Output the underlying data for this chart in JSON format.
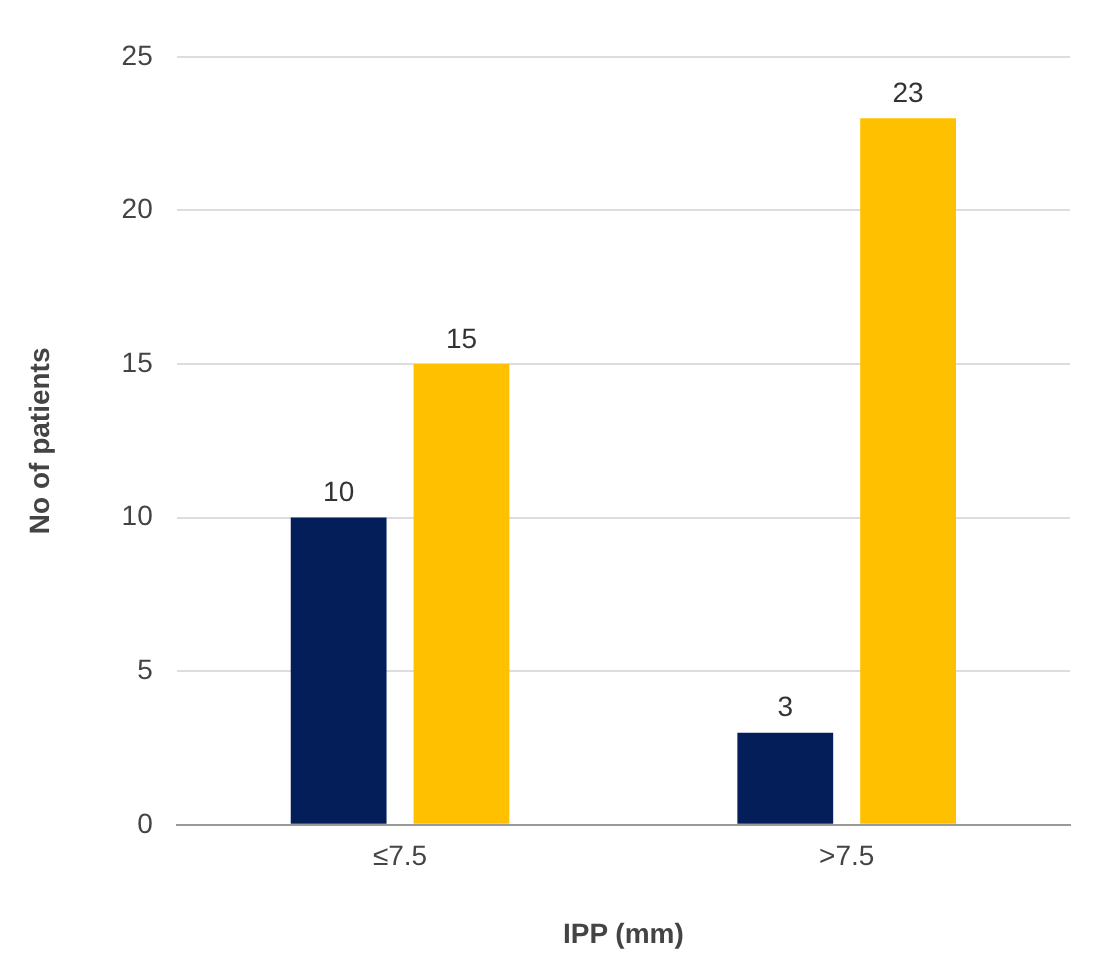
{
  "chart_data": {
    "type": "bar",
    "xlabel": "IPP (mm)",
    "ylabel": "No of patients",
    "categories": [
      "≤7.5",
      ">7.5"
    ],
    "series": [
      {
        "color": "#041e5a",
        "values": [
          10,
          3
        ]
      },
      {
        "color": "#ffc000",
        "values": [
          15,
          23
        ]
      }
    ],
    "ylim": [
      0,
      25
    ],
    "yticks": [
      0,
      5,
      10,
      15,
      20,
      25
    ],
    "grid": "y",
    "data_labels": true,
    "legend": false
  }
}
